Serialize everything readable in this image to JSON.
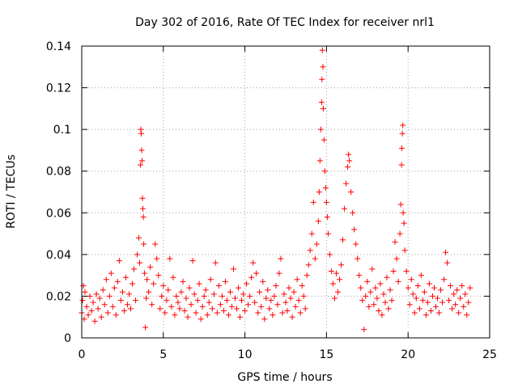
{
  "chart_data": {
    "type": "scatter",
    "title": "Day 302 of 2016, Rate Of TEC Index for receiver nrl1",
    "xlabel": "GPS time / hours",
    "ylabel": "ROTI / TECUs",
    "xlim": [
      0,
      25
    ],
    "ylim": [
      0,
      0.14
    ],
    "grid": true,
    "marker": "+",
    "color": "#ff0000",
    "x_ticks": [
      {
        "value": 0,
        "label": "0"
      },
      {
        "value": 5,
        "label": "5"
      },
      {
        "value": 10,
        "label": "10"
      },
      {
        "value": 15,
        "label": "15"
      },
      {
        "value": 20,
        "label": "20"
      },
      {
        "value": 25,
        "label": "25"
      }
    ],
    "y_ticks": [
      {
        "value": 0,
        "label": "0"
      },
      {
        "value": 0.02,
        "label": "0.02"
      },
      {
        "value": 0.04,
        "label": "0.04"
      },
      {
        "value": 0.06,
        "label": "0.06"
      },
      {
        "value": 0.08,
        "label": "0.08"
      },
      {
        "value": 0.1,
        "label": "0.1"
      },
      {
        "value": 0.12,
        "label": "0.12"
      },
      {
        "value": 0.14,
        "label": "0.14"
      }
    ],
    "series": [
      {
        "name": "ROTI",
        "points": [
          [
            0.0,
            0.012
          ],
          [
            0.05,
            0.018
          ],
          [
            0.1,
            0.025
          ],
          [
            0.15,
            0.009
          ],
          [
            0.2,
            0.022
          ],
          [
            0.3,
            0.015
          ],
          [
            0.4,
            0.011
          ],
          [
            0.5,
            0.02
          ],
          [
            0.6,
            0.013
          ],
          [
            0.7,
            0.017
          ],
          [
            0.8,
            0.008
          ],
          [
            0.9,
            0.021
          ],
          [
            1.0,
            0.014
          ],
          [
            1.1,
            0.019
          ],
          [
            1.2,
            0.01
          ],
          [
            1.3,
            0.023
          ],
          [
            1.4,
            0.016
          ],
          [
            1.5,
            0.028
          ],
          [
            1.6,
            0.012
          ],
          [
            1.7,
            0.02
          ],
          [
            1.8,
            0.031
          ],
          [
            1.9,
            0.015
          ],
          [
            2.0,
            0.024
          ],
          [
            2.1,
            0.011
          ],
          [
            2.2,
            0.027
          ],
          [
            2.3,
            0.037
          ],
          [
            2.4,
            0.018
          ],
          [
            2.5,
            0.022
          ],
          [
            2.6,
            0.013
          ],
          [
            2.7,
            0.029
          ],
          [
            2.8,
            0.016
          ],
          [
            2.9,
            0.021
          ],
          [
            3.0,
            0.014
          ],
          [
            3.1,
            0.026
          ],
          [
            3.2,
            0.033
          ],
          [
            3.3,
            0.018
          ],
          [
            3.4,
            0.04
          ],
          [
            3.5,
            0.048
          ],
          [
            3.55,
            0.036
          ],
          [
            3.6,
            0.083
          ],
          [
            3.62,
            0.1
          ],
          [
            3.65,
            0.098
          ],
          [
            3.67,
            0.09
          ],
          [
            3.7,
            0.085
          ],
          [
            3.72,
            0.067
          ],
          [
            3.75,
            0.062
          ],
          [
            3.78,
            0.058
          ],
          [
            3.8,
            0.045
          ],
          [
            3.85,
            0.031
          ],
          [
            3.9,
            0.005
          ],
          [
            3.95,
            0.019
          ],
          [
            4.0,
            0.028
          ],
          [
            4.1,
            0.022
          ],
          [
            4.2,
            0.034
          ],
          [
            4.3,
            0.016
          ],
          [
            4.4,
            0.026
          ],
          [
            4.5,
            0.045
          ],
          [
            4.6,
            0.038
          ],
          [
            4.7,
            0.03
          ],
          [
            4.8,
            0.014
          ],
          [
            4.9,
            0.02
          ],
          [
            5.0,
            0.025
          ],
          [
            5.1,
            0.012
          ],
          [
            5.2,
            0.018
          ],
          [
            5.3,
            0.023
          ],
          [
            5.4,
            0.038
          ],
          [
            5.5,
            0.015
          ],
          [
            5.6,
            0.029
          ],
          [
            5.7,
            0.011
          ],
          [
            5.8,
            0.02
          ],
          [
            5.9,
            0.017
          ],
          [
            6.0,
            0.014
          ],
          [
            6.1,
            0.022
          ],
          [
            6.2,
            0.027
          ],
          [
            6.3,
            0.013
          ],
          [
            6.4,
            0.019
          ],
          [
            6.5,
            0.01
          ],
          [
            6.6,
            0.024
          ],
          [
            6.7,
            0.016
          ],
          [
            6.8,
            0.037
          ],
          [
            6.9,
            0.021
          ],
          [
            7.0,
            0.012
          ],
          [
            7.1,
            0.018
          ],
          [
            7.2,
            0.026
          ],
          [
            7.3,
            0.009
          ],
          [
            7.4,
            0.015
          ],
          [
            7.5,
            0.02
          ],
          [
            7.6,
            0.023
          ],
          [
            7.7,
            0.011
          ],
          [
            7.8,
            0.017
          ],
          [
            7.9,
            0.028
          ],
          [
            8.0,
            0.014
          ],
          [
            8.1,
            0.021
          ],
          [
            8.2,
            0.036
          ],
          [
            8.3,
            0.012
          ],
          [
            8.4,
            0.025
          ],
          [
            8.5,
            0.016
          ],
          [
            8.6,
            0.02
          ],
          [
            8.7,
            0.013
          ],
          [
            8.8,
            0.027
          ],
          [
            8.9,
            0.018
          ],
          [
            9.0,
            0.011
          ],
          [
            9.1,
            0.022
          ],
          [
            9.2,
            0.015
          ],
          [
            9.3,
            0.033
          ],
          [
            9.4,
            0.019
          ],
          [
            9.5,
            0.014
          ],
          [
            9.6,
            0.024
          ],
          [
            9.7,
            0.01
          ],
          [
            9.8,
            0.018
          ],
          [
            9.9,
            0.021
          ],
          [
            10.0,
            0.013
          ],
          [
            10.1,
            0.026
          ],
          [
            10.2,
            0.016
          ],
          [
            10.3,
            0.02
          ],
          [
            10.4,
            0.029
          ],
          [
            10.5,
            0.036
          ],
          [
            10.6,
            0.017
          ],
          [
            10.7,
            0.031
          ],
          [
            10.8,
            0.012
          ],
          [
            10.9,
            0.022
          ],
          [
            11.0,
            0.015
          ],
          [
            11.1,
            0.027
          ],
          [
            11.2,
            0.009
          ],
          [
            11.3,
            0.019
          ],
          [
            11.4,
            0.023
          ],
          [
            11.5,
            0.014
          ],
          [
            11.6,
            0.018
          ],
          [
            11.7,
            0.011
          ],
          [
            11.8,
            0.02
          ],
          [
            11.9,
            0.025
          ],
          [
            12.0,
            0.016
          ],
          [
            12.1,
            0.031
          ],
          [
            12.2,
            0.038
          ],
          [
            12.3,
            0.012
          ],
          [
            12.4,
            0.021
          ],
          [
            12.5,
            0.017
          ],
          [
            12.6,
            0.013
          ],
          [
            12.7,
            0.024
          ],
          [
            12.8,
            0.019
          ],
          [
            12.9,
            0.01
          ],
          [
            13.0,
            0.022
          ],
          [
            13.1,
            0.015
          ],
          [
            13.2,
            0.028
          ],
          [
            13.3,
            0.018
          ],
          [
            13.4,
            0.012
          ],
          [
            13.5,
            0.025
          ],
          [
            13.6,
            0.02
          ],
          [
            13.7,
            0.014
          ],
          [
            13.8,
            0.03
          ],
          [
            13.9,
            0.035
          ],
          [
            14.0,
            0.042
          ],
          [
            14.1,
            0.05
          ],
          [
            14.2,
            0.065
          ],
          [
            14.3,
            0.038
          ],
          [
            14.4,
            0.045
          ],
          [
            14.5,
            0.056
          ],
          [
            14.55,
            0.07
          ],
          [
            14.6,
            0.085
          ],
          [
            14.65,
            0.1
          ],
          [
            14.7,
            0.113
          ],
          [
            14.72,
            0.124
          ],
          [
            14.75,
            0.138
          ],
          [
            14.78,
            0.13
          ],
          [
            14.8,
            0.11
          ],
          [
            14.85,
            0.095
          ],
          [
            14.9,
            0.08
          ],
          [
            14.95,
            0.072
          ],
          [
            15.0,
            0.065
          ],
          [
            15.05,
            0.058
          ],
          [
            15.1,
            0.05
          ],
          [
            15.2,
            0.04
          ],
          [
            15.3,
            0.032
          ],
          [
            15.4,
            0.026
          ],
          [
            15.5,
            0.019
          ],
          [
            15.6,
            0.031
          ],
          [
            15.7,
            0.022
          ],
          [
            15.8,
            0.028
          ],
          [
            15.9,
            0.035
          ],
          [
            16.0,
            0.047
          ],
          [
            16.1,
            0.062
          ],
          [
            16.2,
            0.074
          ],
          [
            16.3,
            0.082
          ],
          [
            16.35,
            0.088
          ],
          [
            16.4,
            0.085
          ],
          [
            16.5,
            0.07
          ],
          [
            16.6,
            0.06
          ],
          [
            16.7,
            0.052
          ],
          [
            16.8,
            0.045
          ],
          [
            16.9,
            0.038
          ],
          [
            17.0,
            0.03
          ],
          [
            17.1,
            0.024
          ],
          [
            17.2,
            0.018
          ],
          [
            17.3,
            0.004
          ],
          [
            17.4,
            0.02
          ],
          [
            17.5,
            0.027
          ],
          [
            17.6,
            0.015
          ],
          [
            17.7,
            0.022
          ],
          [
            17.8,
            0.033
          ],
          [
            17.9,
            0.016
          ],
          [
            18.0,
            0.024
          ],
          [
            18.1,
            0.019
          ],
          [
            18.2,
            0.013
          ],
          [
            18.3,
            0.026
          ],
          [
            18.4,
            0.011
          ],
          [
            18.5,
            0.021
          ],
          [
            18.6,
            0.017
          ],
          [
            18.7,
            0.029
          ],
          [
            18.8,
            0.014
          ],
          [
            18.9,
            0.023
          ],
          [
            19.0,
            0.018
          ],
          [
            19.1,
            0.032
          ],
          [
            19.2,
            0.046
          ],
          [
            19.3,
            0.038
          ],
          [
            19.4,
            0.027
          ],
          [
            19.5,
            0.05
          ],
          [
            19.55,
            0.064
          ],
          [
            19.6,
            0.083
          ],
          [
            19.62,
            0.091
          ],
          [
            19.65,
            0.098
          ],
          [
            19.68,
            0.102
          ],
          [
            19.7,
            0.06
          ],
          [
            19.75,
            0.055
          ],
          [
            19.8,
            0.042
          ],
          [
            19.9,
            0.032
          ],
          [
            20.0,
            0.024
          ],
          [
            20.1,
            0.016
          ],
          [
            20.2,
            0.028
          ],
          [
            20.3,
            0.021
          ],
          [
            20.4,
            0.012
          ],
          [
            20.5,
            0.019
          ],
          [
            20.6,
            0.025
          ],
          [
            20.7,
            0.014
          ],
          [
            20.8,
            0.03
          ],
          [
            20.9,
            0.018
          ],
          [
            21.0,
            0.022
          ],
          [
            21.1,
            0.011
          ],
          [
            21.2,
            0.017
          ],
          [
            21.3,
            0.026
          ],
          [
            21.4,
            0.013
          ],
          [
            21.5,
            0.02
          ],
          [
            21.6,
            0.024
          ],
          [
            21.7,
            0.015
          ],
          [
            21.8,
            0.019
          ],
          [
            21.9,
            0.012
          ],
          [
            22.0,
            0.023
          ],
          [
            22.1,
            0.017
          ],
          [
            22.2,
            0.028
          ],
          [
            22.3,
            0.041
          ],
          [
            22.4,
            0.036
          ],
          [
            22.5,
            0.018
          ],
          [
            22.6,
            0.025
          ],
          [
            22.7,
            0.014
          ],
          [
            22.8,
            0.021
          ],
          [
            22.9,
            0.016
          ],
          [
            23.0,
            0.023
          ],
          [
            23.1,
            0.012
          ],
          [
            23.2,
            0.019
          ],
          [
            23.3,
            0.025
          ],
          [
            23.4,
            0.015
          ],
          [
            23.5,
            0.021
          ],
          [
            23.6,
            0.011
          ],
          [
            23.7,
            0.017
          ],
          [
            23.8,
            0.024
          ]
        ]
      }
    ]
  }
}
